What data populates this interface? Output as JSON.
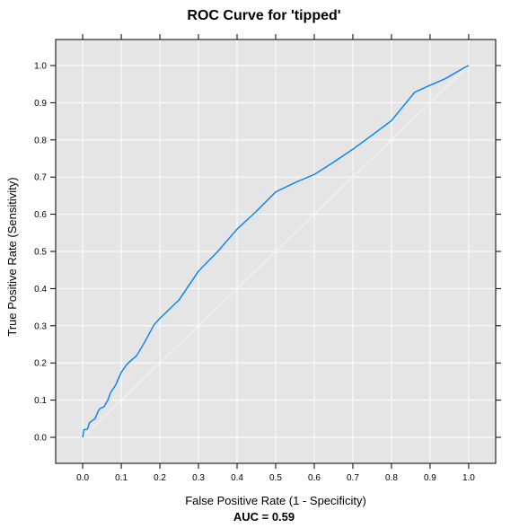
{
  "chart_data": {
    "type": "line",
    "title": "ROC Curve for 'tipped'",
    "xlabel": "False Positive Rate (1 - Specificity)",
    "ylabel": "True Positive Rate (Sensitivity)",
    "auc_label": "AUC =  0.59",
    "xlim": [
      -0.07,
      1.07
    ],
    "ylim": [
      -0.07,
      1.07
    ],
    "x_ticks": [
      "0.0",
      "0.1",
      "0.2",
      "0.3",
      "0.4",
      "0.5",
      "0.6",
      "0.7",
      "0.8",
      "0.9",
      "1.0"
    ],
    "y_ticks": [
      "0.0",
      "0.1",
      "0.2",
      "0.3",
      "0.4",
      "0.5",
      "0.6",
      "0.7",
      "0.8",
      "0.9",
      "1.0"
    ],
    "grid": true,
    "colors": {
      "panel_bg": "#e5e5e5",
      "grid": "#ffffff",
      "curve": "#0080ff",
      "diagonal": "#f5f5f5"
    },
    "series": [
      {
        "values": [
          [
            0.0,
            0.0
          ],
          [
            0.003,
            0.02
          ],
          [
            0.012,
            0.022
          ],
          [
            0.018,
            0.04
          ],
          [
            0.025,
            0.045
          ],
          [
            0.032,
            0.05
          ],
          [
            0.04,
            0.07
          ],
          [
            0.045,
            0.078
          ],
          [
            0.055,
            0.082
          ],
          [
            0.065,
            0.1
          ],
          [
            0.072,
            0.12
          ],
          [
            0.085,
            0.14
          ],
          [
            0.1,
            0.175
          ],
          [
            0.115,
            0.197
          ],
          [
            0.14,
            0.22
          ],
          [
            0.16,
            0.255
          ],
          [
            0.185,
            0.303
          ],
          [
            0.2,
            0.32
          ],
          [
            0.25,
            0.37
          ],
          [
            0.3,
            0.447
          ],
          [
            0.35,
            0.5
          ],
          [
            0.4,
            0.56
          ],
          [
            0.45,
            0.608
          ],
          [
            0.5,
            0.66
          ],
          [
            0.55,
            0.685
          ],
          [
            0.6,
            0.707
          ],
          [
            0.65,
            0.74
          ],
          [
            0.7,
            0.775
          ],
          [
            0.75,
            0.813
          ],
          [
            0.8,
            0.852
          ],
          [
            0.83,
            0.89
          ],
          [
            0.86,
            0.928
          ],
          [
            0.9,
            0.947
          ],
          [
            0.94,
            0.965
          ],
          [
            0.97,
            0.983
          ],
          [
            0.99,
            0.995
          ],
          [
            1.0,
            1.0
          ]
        ]
      }
    ],
    "reference_line": [
      [
        0.0,
        0.0
      ],
      [
        1.0,
        1.0
      ]
    ]
  }
}
